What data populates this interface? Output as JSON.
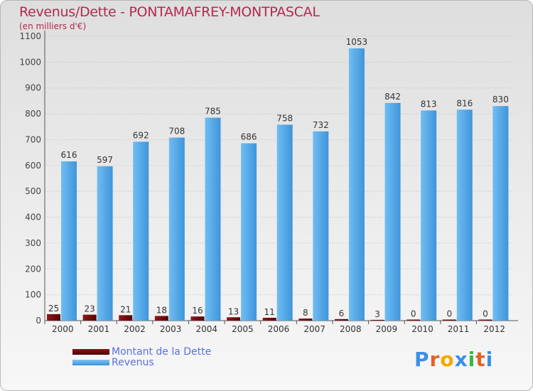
{
  "header": {
    "title": "Revenus/Dette - PONTAMAFREY-MONTPASCAL",
    "subtitle": "(en milliers d'€)"
  },
  "colors": {
    "title": "#b5294f",
    "debt": "#7a0a0a",
    "revenue": "#4fa3e6",
    "legend_text": "#5a6fe0"
  },
  "chart_data": {
    "type": "bar",
    "title": "Revenus/Dette - PONTAMAFREY-MONTPASCAL",
    "ylabel": "(en milliers d'€)",
    "xlabel": "",
    "categories": [
      "2000",
      "2001",
      "2002",
      "2003",
      "2004",
      "2005",
      "2006",
      "2007",
      "2008",
      "2009",
      "2010",
      "2011",
      "2012"
    ],
    "series": [
      {
        "name": "Montant de la Dette",
        "values": [
          25,
          23,
          21,
          18,
          16,
          13,
          11,
          8,
          6,
          3,
          0,
          0,
          0
        ]
      },
      {
        "name": "Revenus",
        "values": [
          616,
          597,
          692,
          708,
          785,
          686,
          758,
          732,
          1053,
          842,
          813,
          816,
          830
        ]
      }
    ],
    "ylim": [
      0,
      1100
    ],
    "yticks": [
      0,
      100,
      200,
      300,
      400,
      500,
      600,
      700,
      800,
      900,
      1000,
      1100
    ],
    "grid": true,
    "legend": "bottom-left"
  },
  "legend": {
    "items": [
      {
        "label": "Montant de la Dette",
        "icon": "debt-swatch"
      },
      {
        "label": "Revenus",
        "icon": "revenue-swatch"
      }
    ]
  },
  "logo": {
    "text": "Proxiti"
  }
}
